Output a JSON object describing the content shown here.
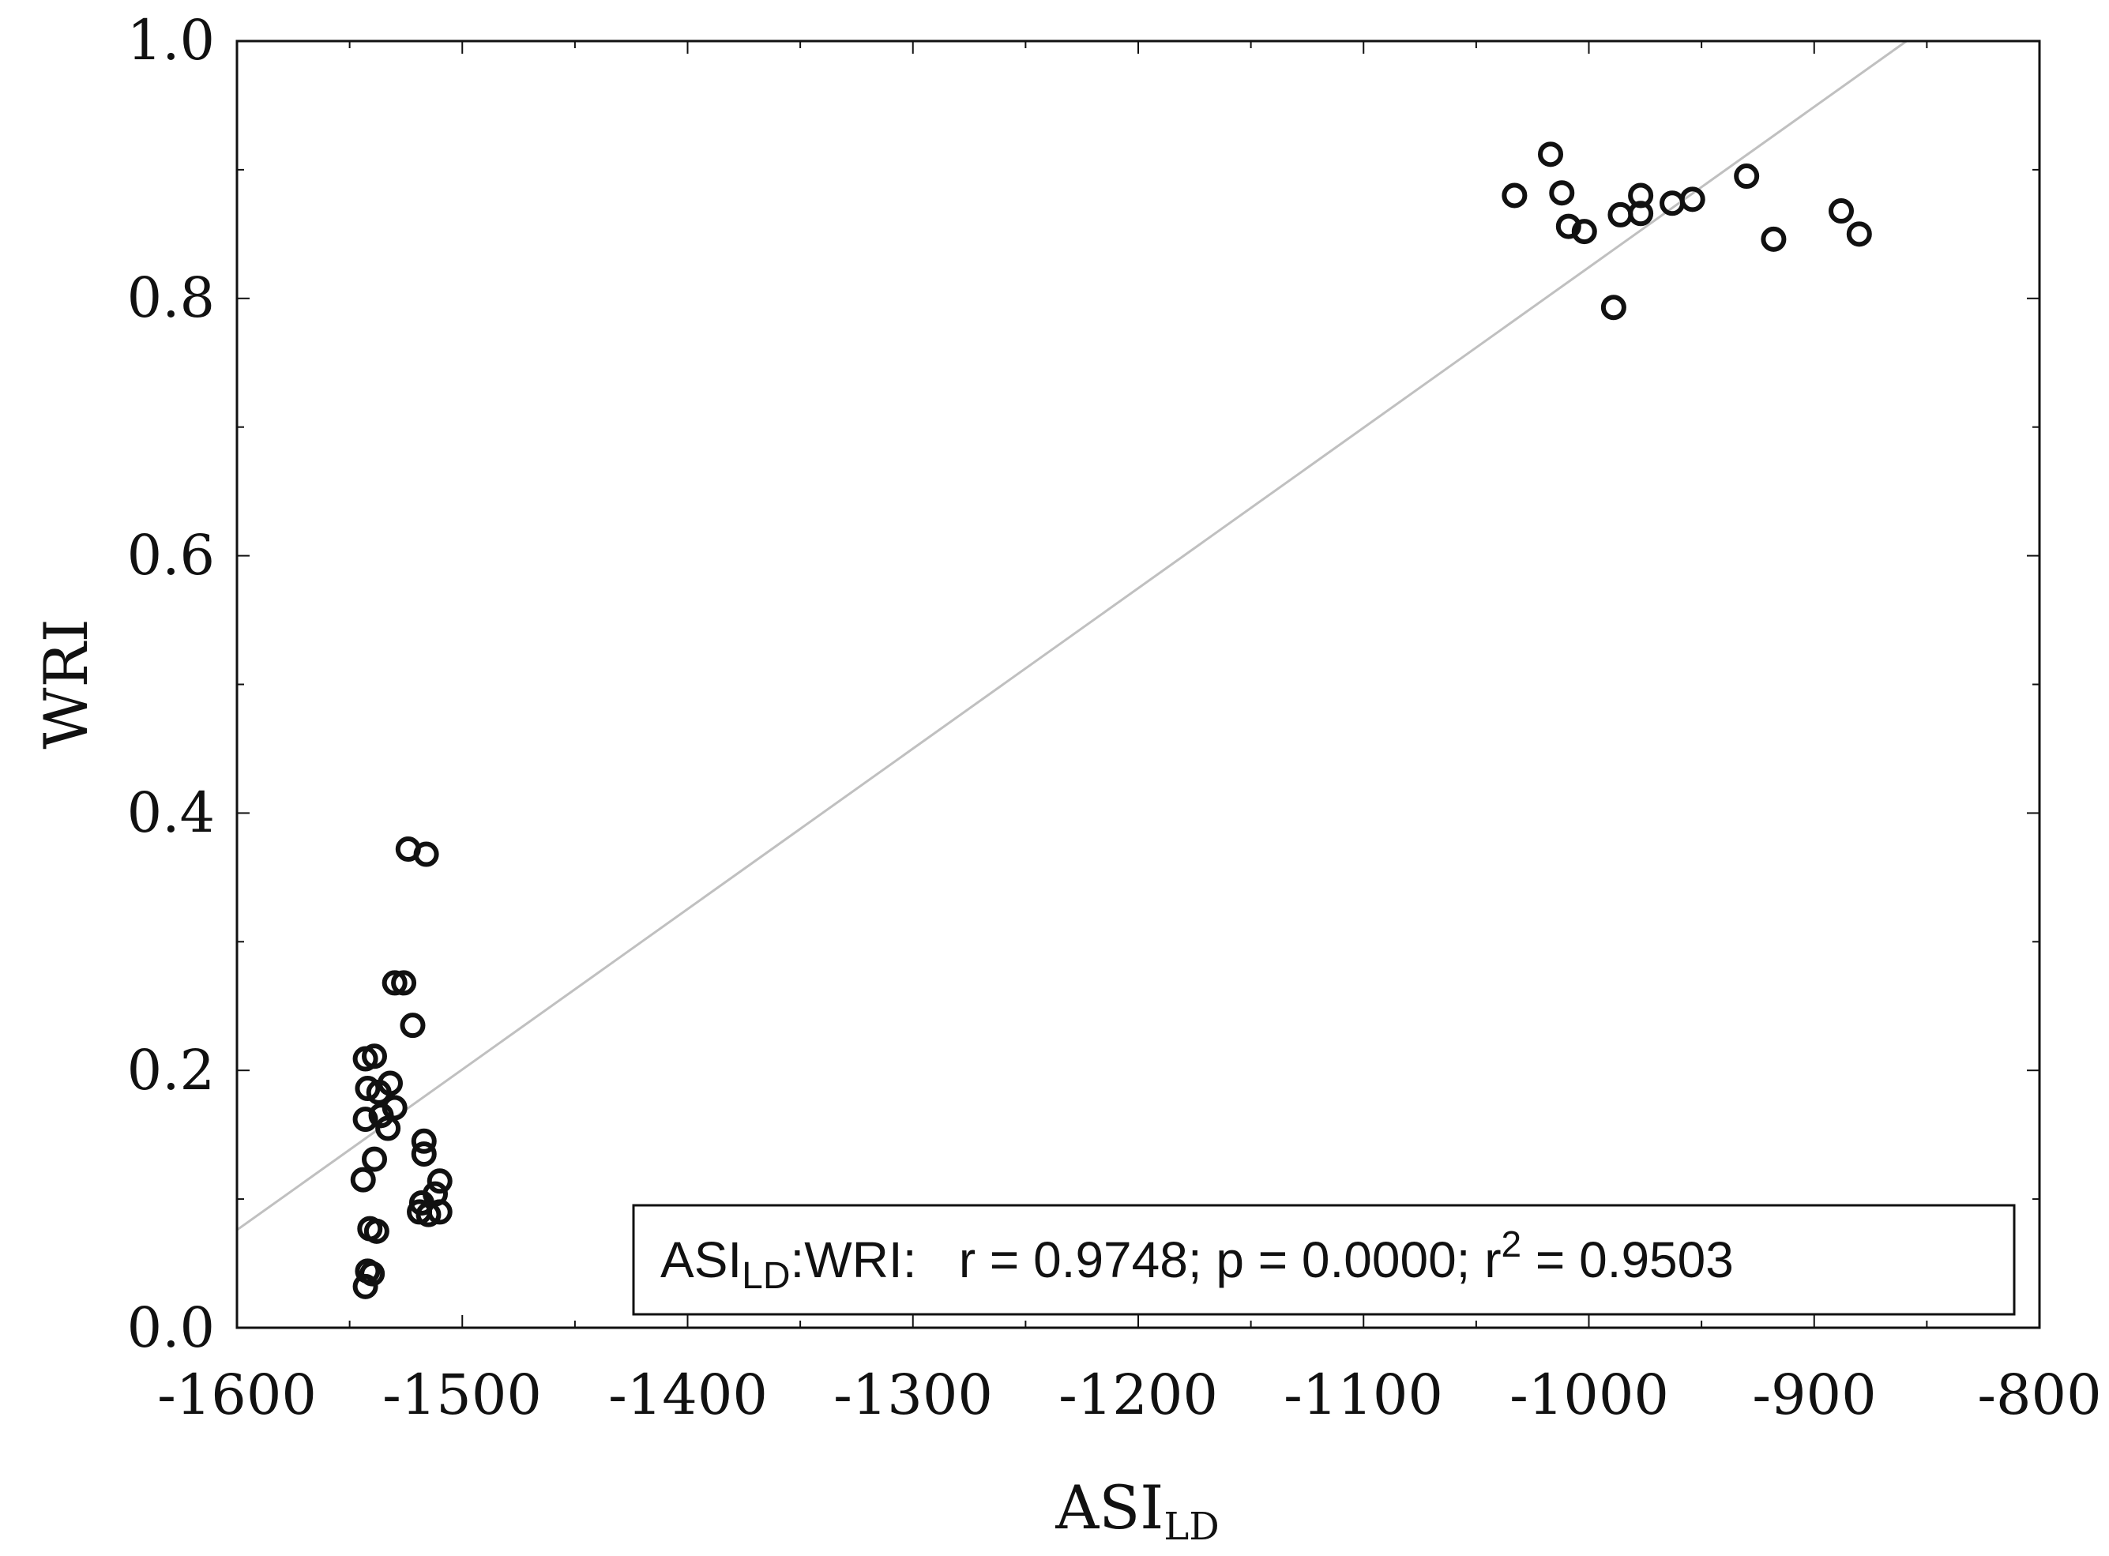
{
  "chart_data": {
    "type": "scatter",
    "title": "",
    "xlabel": "ASI",
    "xlabel_sub": "LD",
    "ylabel": "WRI",
    "xlim": [
      -1600,
      -800
    ],
    "ylim": [
      0.0,
      1.0
    ],
    "x_ticks": [
      -1600,
      -1500,
      -1400,
      -1300,
      -1200,
      -1100,
      -1000,
      -900,
      -800
    ],
    "x_tick_labels": [
      "-1600",
      "-1500",
      "-1400",
      "-1300",
      "-1200",
      "-1100",
      "-1000",
      "-900",
      "-800"
    ],
    "y_ticks": [
      0.0,
      0.2,
      0.4,
      0.6,
      0.8,
      1.0
    ],
    "y_tick_labels": [
      "0.0",
      "0.2",
      "0.4",
      "0.6",
      "0.8",
      "1.0"
    ],
    "grid": false,
    "points": [
      {
        "x": -1524,
        "y": 0.372
      },
      {
        "x": -1516,
        "y": 0.368
      },
      {
        "x": -1530,
        "y": 0.268
      },
      {
        "x": -1526,
        "y": 0.268
      },
      {
        "x": -1522,
        "y": 0.235
      },
      {
        "x": -1543,
        "y": 0.209
      },
      {
        "x": -1539,
        "y": 0.211
      },
      {
        "x": -1532,
        "y": 0.19
      },
      {
        "x": -1542,
        "y": 0.186
      },
      {
        "x": -1537,
        "y": 0.183
      },
      {
        "x": -1530,
        "y": 0.171
      },
      {
        "x": -1536,
        "y": 0.165
      },
      {
        "x": -1543,
        "y": 0.162
      },
      {
        "x": -1533,
        "y": 0.155
      },
      {
        "x": -1517,
        "y": 0.145
      },
      {
        "x": -1517,
        "y": 0.135
      },
      {
        "x": -1539,
        "y": 0.131
      },
      {
        "x": -1544,
        "y": 0.115
      },
      {
        "x": -1510,
        "y": 0.114
      },
      {
        "x": -1512,
        "y": 0.104
      },
      {
        "x": -1518,
        "y": 0.097
      },
      {
        "x": -1519,
        "y": 0.09
      },
      {
        "x": -1515,
        "y": 0.088
      },
      {
        "x": -1510,
        "y": 0.09
      },
      {
        "x": -1541,
        "y": 0.077
      },
      {
        "x": -1538,
        "y": 0.075
      },
      {
        "x": -1542,
        "y": 0.044
      },
      {
        "x": -1540,
        "y": 0.042
      },
      {
        "x": -1543,
        "y": 0.032
      },
      {
        "x": -1033,
        "y": 0.88
      },
      {
        "x": -1017,
        "y": 0.912
      },
      {
        "x": -1012,
        "y": 0.882
      },
      {
        "x": -1009,
        "y": 0.856
      },
      {
        "x": -1002,
        "y": 0.852
      },
      {
        "x": -989,
        "y": 0.793
      },
      {
        "x": -986,
        "y": 0.865
      },
      {
        "x": -977,
        "y": 0.866
      },
      {
        "x": -977,
        "y": 0.88
      },
      {
        "x": -963,
        "y": 0.874
      },
      {
        "x": -954,
        "y": 0.877
      },
      {
        "x": -930,
        "y": 0.895
      },
      {
        "x": -918,
        "y": 0.846
      },
      {
        "x": -888,
        "y": 0.868
      },
      {
        "x": -880,
        "y": 0.85
      }
    ],
    "regression_line": {
      "x": [
        -1600,
        -859
      ],
      "y": [
        0.076,
        1.0
      ]
    },
    "annotation": {
      "prefix": "ASI",
      "prefix_sub": "LD",
      "middle": ":WRI:   r = 0.9748; p = 0.0000; r",
      "sup": "2",
      "suffix": " = 0.9503",
      "placement": "bottom-right"
    },
    "colors": {
      "marker": "#111111",
      "line": "#c0c0c0",
      "axes": "#111111"
    }
  }
}
